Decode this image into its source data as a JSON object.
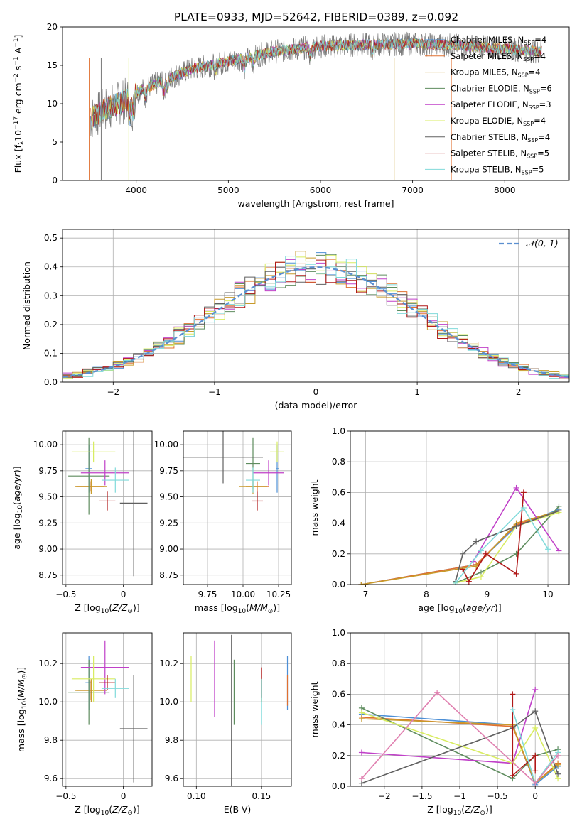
{
  "title": "PLATE=0933, MJD=52642, FIBERID=0389, z=0.092",
  "colors": {
    "chabrier_miles": "#4c8fd6",
    "salpeter_miles": "#e07030",
    "kroupa_miles": "#c89a2a",
    "chabrier_elodie": "#5e8c5e",
    "salpeter_elodie": "#c040c8",
    "kroupa_elodie": "#d8ec60",
    "chabrier_stelib": "#606060",
    "salpeter_stelib": "#b01818",
    "kroupa_stelib": "#80dada",
    "normal": "#5b8fd0",
    "grid": "#b0b0b0"
  },
  "legend": [
    {
      "key": "chabrier_miles",
      "label": "Chabrier MILES, N",
      "sub": "SSP",
      "rest": "=4"
    },
    {
      "key": "salpeter_miles",
      "label": "Salpeter MILES, N",
      "sub": "SSP",
      "rest": "=4"
    },
    {
      "key": "kroupa_miles",
      "label": "Kroupa MILES, N",
      "sub": "SSP",
      "rest": "=4"
    },
    {
      "key": "chabrier_elodie",
      "label": "Chabrier ELODIE, N",
      "sub": "SSP",
      "rest": "=6"
    },
    {
      "key": "salpeter_elodie",
      "label": "Salpeter ELODIE, N",
      "sub": "SSP",
      "rest": "=3"
    },
    {
      "key": "kroupa_elodie",
      "label": "Kroupa ELODIE, N",
      "sub": "SSP",
      "rest": "=4"
    },
    {
      "key": "chabrier_stelib",
      "label": "Chabrier STELIB, N",
      "sub": "SSP",
      "rest": "=4"
    },
    {
      "key": "salpeter_stelib",
      "label": "Salpeter STELIB, N",
      "sub": "SSP",
      "rest": "=5"
    },
    {
      "key": "kroupa_stelib",
      "label": "Kroupa STELIB, N",
      "sub": "SSP",
      "rest": "=5"
    }
  ],
  "chart_data": [
    {
      "id": "spectrum",
      "type": "line",
      "xlabel": "wavelength [Angstrom, rest frame]",
      "ylabel": "Flux [f",
      "xlim": [
        3200,
        8700
      ],
      "ylim": [
        0,
        20
      ],
      "xticks": [
        4000,
        5000,
        6000,
        7000,
        8000
      ],
      "yticks": [
        0,
        5,
        10,
        15,
        20
      ],
      "continuum": [
        [
          3500,
          8.0
        ],
        [
          3700,
          9.5
        ],
        [
          3900,
          10.5
        ],
        [
          4000,
          11.5
        ],
        [
          4300,
          13.0
        ],
        [
          4600,
          14.5
        ],
        [
          5000,
          15.5
        ],
        [
          5500,
          16.8
        ],
        [
          6000,
          17.5
        ],
        [
          6500,
          17.7
        ],
        [
          7000,
          17.8
        ],
        [
          7500,
          17.6
        ],
        [
          8000,
          17.2
        ],
        [
          8400,
          16.8
        ]
      ],
      "data_range": [
        3500,
        8400
      ]
    },
    {
      "id": "residuals",
      "type": "line",
      "xlabel": "(data-model)/error",
      "ylabel": "Normed distribution",
      "xlim": [
        -2.5,
        2.5
      ],
      "ylim": [
        0,
        0.53
      ],
      "xticks": [
        -2,
        -1,
        0,
        1,
        2
      ],
      "yticks": [
        0.0,
        0.1,
        0.2,
        0.3,
        0.4,
        0.5
      ],
      "legend_label": "𝒩(0, 1)"
    },
    {
      "id": "age_vs_Z",
      "type": "scatter",
      "xlabel": "Z [log",
      "ylabel": "age  [log",
      "xlim": [
        -0.53,
        0.25
      ],
      "ylim": [
        8.66,
        10.13
      ],
      "xticks": [
        -0.5,
        0.0
      ],
      "yticks": [
        8.75,
        9.0,
        9.25,
        9.5,
        9.75,
        10.0
      ],
      "points": [
        {
          "key": "chabrier_miles",
          "x": -0.3,
          "xerr": 0.03,
          "y": 9.77,
          "yerr": 0.23
        },
        {
          "key": "salpeter_miles",
          "x": -0.29,
          "xerr": 0.12,
          "y": 9.6,
          "yerr": 0.05
        },
        {
          "key": "kroupa_miles",
          "x": -0.28,
          "xerr": 0.14,
          "y": 9.6,
          "yerr": 0.07
        },
        {
          "key": "chabrier_elodie",
          "x": -0.3,
          "xerr": 0.18,
          "y": 9.7,
          "yerr": 0.37
        },
        {
          "key": "salpeter_elodie",
          "x": -0.16,
          "xerr": 0.21,
          "y": 9.73,
          "yerr": 0.12
        },
        {
          "key": "kroupa_elodie",
          "x": -0.26,
          "xerr": 0.19,
          "y": 9.93,
          "yerr": 0.1
        },
        {
          "key": "chabrier_stelib",
          "x": 0.09,
          "xerr": 0.12,
          "y": 9.44,
          "yerr": 0.7
        },
        {
          "key": "salpeter_stelib",
          "x": -0.14,
          "xerr": 0.07,
          "y": 9.46,
          "yerr": 0.09
        },
        {
          "key": "kroupa_stelib",
          "x": -0.07,
          "xerr": 0.12,
          "y": 9.66,
          "yerr": 0.12
        }
      ]
    },
    {
      "id": "age_vs_mass",
      "type": "scatter",
      "xlabel": "mass [log",
      "ylabel": "",
      "xlim": [
        9.58,
        10.34
      ],
      "ylim": [
        8.66,
        10.13
      ],
      "xticks": [
        9.75,
        10.0,
        10.25
      ],
      "xticklabels": [
        "9.75",
        "10.00",
        "10.25"
      ],
      "yticks": [
        8.75,
        9.0,
        9.25,
        9.5,
        9.75,
        10.0
      ],
      "points": [
        {
          "key": "chabrier_miles",
          "x": 10.24,
          "xerr": 0.01,
          "y": 9.77,
          "yerr": 0.23
        },
        {
          "key": "salpeter_miles",
          "x": 10.1,
          "xerr": 0.08,
          "y": 9.6,
          "yerr": 0.05
        },
        {
          "key": "kroupa_miles",
          "x": 10.07,
          "xerr": 0.1,
          "y": 9.6,
          "yerr": 0.07
        },
        {
          "key": "chabrier_elodie",
          "x": 10.07,
          "xerr": 0.05,
          "y": 9.82,
          "yerr": 0.25
        },
        {
          "key": "salpeter_elodie",
          "x": 10.18,
          "xerr": 0.11,
          "y": 9.73,
          "yerr": 0.12
        },
        {
          "key": "kroupa_elodie",
          "x": 10.24,
          "xerr": 0.05,
          "y": 9.93,
          "yerr": 0.1
        },
        {
          "key": "chabrier_stelib",
          "x": 9.86,
          "xerr": 0.28,
          "y": 9.88,
          "yerr": 0.25
        },
        {
          "key": "salpeter_stelib",
          "x": 10.1,
          "xerr": 0.04,
          "y": 9.46,
          "yerr": 0.09
        },
        {
          "key": "kroupa_stelib",
          "x": 10.07,
          "xerr": 0.05,
          "y": 9.66,
          "yerr": 0.12
        }
      ]
    },
    {
      "id": "weight_vs_age",
      "type": "line",
      "xlabel": "age  [log",
      "ylabel": "mass weight",
      "xlim": [
        6.75,
        10.35
      ],
      "ylim": [
        0,
        1
      ],
      "xticks": [
        7,
        8,
        9,
        10
      ],
      "yticks": [
        0.0,
        0.2,
        0.4,
        0.6,
        0.8,
        1.0
      ],
      "series": [
        {
          "key": "chabrier_miles",
          "points": [
            [
              6.93,
              0.0
            ],
            [
              8.82,
              0.13
            ],
            [
              9.48,
              0.38
            ],
            [
              10.18,
              0.49
            ]
          ]
        },
        {
          "key": "salpeter_miles",
          "points": [
            [
              6.93,
              0.0
            ],
            [
              8.82,
              0.13
            ],
            [
              9.48,
              0.39
            ],
            [
              10.18,
              0.48
            ]
          ]
        },
        {
          "key": "kroupa_miles",
          "points": [
            [
              6.93,
              0.0
            ],
            [
              8.82,
              0.12
            ],
            [
              9.48,
              0.4
            ],
            [
              10.18,
              0.48
            ]
          ]
        },
        {
          "key": "chabrier_elodie",
          "points": [
            [
              8.48,
              0.01
            ],
            [
              8.9,
              0.08
            ],
            [
              9.48,
              0.2
            ],
            [
              10.18,
              0.51
            ]
          ]
        },
        {
          "key": "salpeter_elodie",
          "points": [
            [
              8.77,
              0.15
            ],
            [
              9.48,
              0.63
            ],
            [
              10.18,
              0.22
            ]
          ]
        },
        {
          "key": "kroupa_elodie",
          "points": [
            [
              8.48,
              0.01
            ],
            [
              8.9,
              0.05
            ],
            [
              9.48,
              0.38
            ],
            [
              10.18,
              0.47
            ]
          ]
        },
        {
          "key": "chabrier_stelib",
          "points": [
            [
              8.48,
              0.02
            ],
            [
              8.6,
              0.2
            ],
            [
              8.82,
              0.28
            ],
            [
              9.48,
              0.38
            ],
            [
              10.18,
              0.48
            ]
          ]
        },
        {
          "key": "salpeter_stelib",
          "points": [
            [
              8.6,
              0.1
            ],
            [
              8.7,
              0.02
            ],
            [
              8.98,
              0.2
            ],
            [
              9.48,
              0.07
            ],
            [
              9.6,
              0.6
            ]
          ]
        },
        {
          "key": "kroupa_stelib",
          "points": [
            [
              8.48,
              0.01
            ],
            [
              8.9,
              0.22
            ],
            [
              9.6,
              0.5
            ],
            [
              10.0,
              0.23
            ]
          ]
        }
      ]
    },
    {
      "id": "mass_vs_Z",
      "type": "scatter",
      "xlabel": "Z [log",
      "ylabel": "mass [log",
      "xlim": [
        -0.53,
        0.25
      ],
      "ylim": [
        9.56,
        10.36
      ],
      "xticks": [
        -0.5,
        0.0
      ],
      "yticks": [
        9.6,
        9.8,
        10.0,
        10.2
      ],
      "points": [
        {
          "key": "chabrier_miles",
          "x": -0.3,
          "xerr": 0.03,
          "y": 10.1,
          "yerr": 0.14
        },
        {
          "key": "salpeter_miles",
          "x": -0.29,
          "xerr": 0.12,
          "y": 10.06,
          "yerr": 0.05
        },
        {
          "key": "kroupa_miles",
          "x": -0.28,
          "xerr": 0.14,
          "y": 10.06,
          "yerr": 0.06
        },
        {
          "key": "chabrier_elodie",
          "x": -0.3,
          "xerr": 0.18,
          "y": 10.05,
          "yerr": 0.17
        },
        {
          "key": "salpeter_elodie",
          "x": -0.16,
          "xerr": 0.21,
          "y": 10.18,
          "yerr": 0.14
        },
        {
          "key": "kroupa_elodie",
          "x": -0.26,
          "xerr": 0.19,
          "y": 10.12,
          "yerr": 0.12
        },
        {
          "key": "chabrier_stelib",
          "x": 0.09,
          "xerr": 0.12,
          "y": 9.86,
          "yerr": 0.28
        },
        {
          "key": "salpeter_stelib",
          "x": -0.14,
          "xerr": 0.07,
          "y": 10.1,
          "yerr": 0.04
        },
        {
          "key": "kroupa_stelib",
          "x": -0.07,
          "xerr": 0.12,
          "y": 10.07,
          "yerr": 0.05
        }
      ]
    },
    {
      "id": "mass_vs_ebv",
      "type": "scatter",
      "xlabel": "E(B-V)",
      "ylabel": "",
      "xlim": [
        0.09,
        0.173
      ],
      "ylim": [
        9.56,
        10.36
      ],
      "xticks": [
        0.1,
        0.15
      ],
      "xticklabels": [
        "0.10",
        "0.15"
      ],
      "yticks": [
        9.6,
        9.8,
        10.0,
        10.2
      ],
      "points": [
        {
          "key": "chabrier_miles",
          "x": 0.17,
          "xerr": 0,
          "y": 10.1,
          "yerr": 0.14
        },
        {
          "key": "salpeter_miles",
          "x": 0.17,
          "xerr": 0,
          "y": 10.06,
          "yerr": 0.08
        },
        {
          "key": "kroupa_miles",
          "x": 0.15,
          "xerr": 0,
          "y": 10.06,
          "yerr": 0.06
        },
        {
          "key": "chabrier_elodie",
          "x": 0.129,
          "xerr": 0,
          "y": 10.05,
          "yerr": 0.17
        },
        {
          "key": "salpeter_elodie",
          "x": 0.114,
          "xerr": 0,
          "y": 10.12,
          "yerr": 0.2
        },
        {
          "key": "kroupa_elodie",
          "x": 0.096,
          "xerr": 0,
          "y": 10.12,
          "yerr": 0.12
        },
        {
          "key": "chabrier_stelib",
          "x": 0.127,
          "xerr": 0,
          "y": 9.86,
          "yerr": 0.49
        },
        {
          "key": "salpeter_stelib",
          "x": 0.15,
          "xerr": 0,
          "y": 10.1,
          "yerr": 0.08
        },
        {
          "key": "kroupa_stelib",
          "x": 0.15,
          "xerr": 0,
          "y": 10.0,
          "yerr": 0.12
        }
      ]
    },
    {
      "id": "weight_vs_Z",
      "type": "line",
      "xlabel": "Z [log",
      "ylabel": "mass weight",
      "xlim": [
        -2.45,
        0.45
      ],
      "ylim": [
        0,
        1
      ],
      "xticks": [
        -2.0,
        -1.5,
        -1.0,
        -0.5,
        0.0
      ],
      "yticks": [
        0.0,
        0.2,
        0.4,
        0.6,
        0.8,
        1.0
      ],
      "series": [
        {
          "key": "chabrier_miles",
          "points": [
            [
              -2.3,
              0.47
            ],
            [
              -0.3,
              0.4
            ],
            [
              0.0,
              0.01
            ],
            [
              0.3,
              0.13
            ]
          ]
        },
        {
          "key": "salpeter_miles",
          "points": [
            [
              -2.3,
              0.45
            ],
            [
              -0.3,
              0.39
            ],
            [
              0.0,
              0.02
            ],
            [
              0.3,
              0.15
            ]
          ]
        },
        {
          "key": "kroupa_miles",
          "points": [
            [
              -2.3,
              0.44
            ],
            [
              -0.3,
              0.4
            ],
            [
              0.0,
              0.02
            ],
            [
              0.3,
              0.14
            ]
          ]
        },
        {
          "key": "chabrier_elodie",
          "points": [
            [
              -2.3,
              0.51
            ],
            [
              -0.3,
              0.05
            ],
            [
              0.0,
              0.2
            ],
            [
              0.3,
              0.24
            ]
          ]
        },
        {
          "key": "salpeter_elodie",
          "points": [
            [
              -2.3,
              0.22
            ],
            [
              -0.3,
              0.15
            ],
            [
              0.0,
              0.63
            ]
          ]
        },
        {
          "key": "kroupa_elodie",
          "points": [
            [
              -2.3,
              0.48
            ],
            [
              -0.3,
              0.15
            ],
            [
              0.0,
              0.38
            ],
            [
              0.3,
              0.05
            ]
          ]
        },
        {
          "key": "chabrier_stelib",
          "points": [
            [
              -2.3,
              0.02
            ],
            [
              -0.3,
              0.38
            ],
            [
              0.0,
              0.49
            ],
            [
              0.3,
              0.08
            ]
          ]
        },
        {
          "key": "salpeter_stelib",
          "points": [
            [
              -0.3,
              0.6
            ],
            [
              -0.3,
              0.07
            ],
            [
              0.0,
              0.2
            ],
            [
              0.0,
              0.1
            ]
          ]
        },
        {
          "key": "kroupa_stelib",
          "points": [
            [
              -0.3,
              0.5
            ],
            [
              0.0,
              0.02
            ],
            [
              0.3,
              0.22
            ]
          ]
        },
        {
          "key": "salpeter_elodie_pink",
          "color": "#e080b0",
          "points": [
            [
              -2.3,
              0.05
            ],
            [
              -1.3,
              0.61
            ],
            [
              0.0,
              0.02
            ],
            [
              0.3,
              0.2
            ]
          ]
        }
      ]
    }
  ]
}
